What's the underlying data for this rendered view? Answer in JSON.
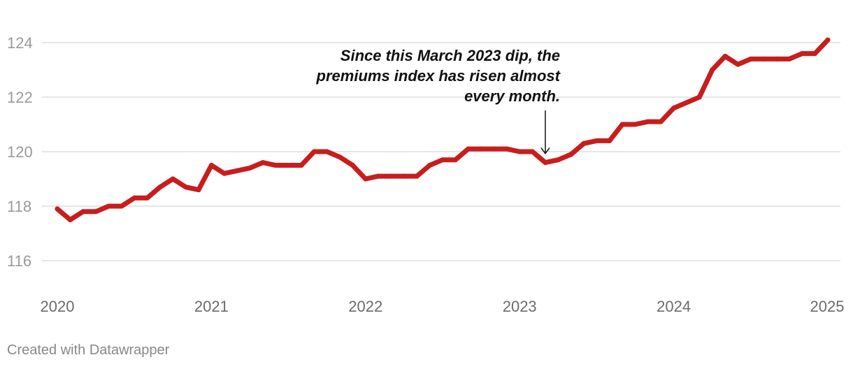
{
  "chart_data": {
    "type": "line",
    "title": "",
    "xlabel": "",
    "ylabel": "",
    "ylim": [
      115,
      125
    ],
    "xlim": [
      2020,
      2025
    ],
    "yticks": [
      116,
      118,
      120,
      122,
      124
    ],
    "xticks": [
      2020,
      2021,
      2022,
      2023,
      2024,
      2025
    ],
    "x_tick_labels": [
      "2020",
      "2021",
      "2022",
      "2023",
      "2024",
      "2025"
    ],
    "y_tick_labels": [
      "116",
      "118",
      "120",
      "122",
      "124"
    ],
    "series": [
      {
        "name": "Premiums index",
        "color": "#c71e1d",
        "x_start": 2020,
        "x_step_months": 1,
        "values": [
          117.9,
          117.5,
          117.8,
          117.8,
          118.0,
          118.0,
          118.3,
          118.3,
          118.7,
          119.0,
          118.7,
          118.6,
          119.5,
          119.2,
          119.3,
          119.4,
          119.6,
          119.5,
          119.5,
          119.5,
          120.0,
          120.0,
          119.8,
          119.5,
          119.0,
          119.1,
          119.1,
          119.1,
          119.1,
          119.5,
          119.7,
          119.7,
          120.1,
          120.1,
          120.1,
          120.1,
          120.0,
          120.0,
          119.6,
          119.7,
          119.9,
          120.3,
          120.4,
          120.4,
          121.0,
          121.0,
          121.1,
          121.1,
          121.6,
          121.8,
          122.0,
          123.0,
          123.5,
          123.2,
          123.4,
          123.4,
          123.4,
          123.4,
          123.6,
          123.6,
          124.1
        ]
      }
    ],
    "annotations": [
      {
        "lines": [
          "Since this March 2023 dip, the",
          "premiums index has risen almost",
          "every month."
        ],
        "target_x": 2023.1667,
        "target_y": 119.6
      }
    ]
  },
  "footer": {
    "credit": "Created with Datawrapper"
  }
}
